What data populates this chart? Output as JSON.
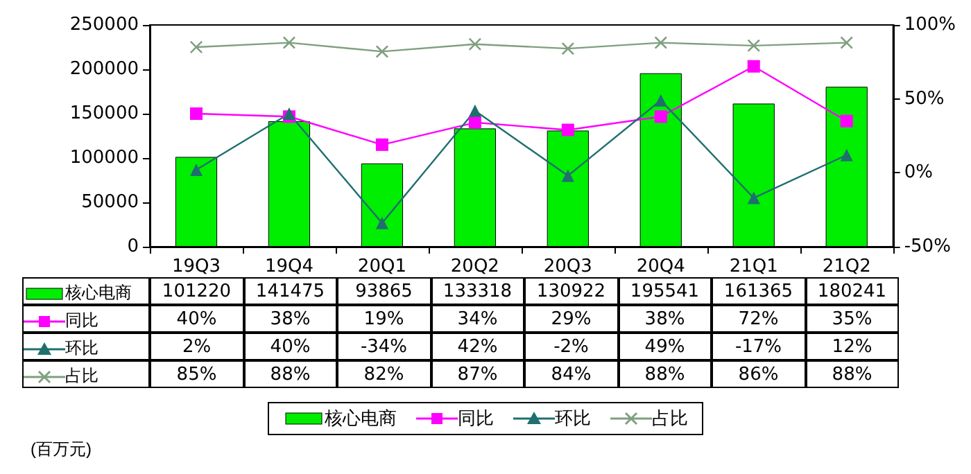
{
  "chart_data": {
    "type": "bar",
    "categories": [
      "19Q3",
      "19Q4",
      "20Q1",
      "20Q2",
      "20Q3",
      "20Q4",
      "21Q1",
      "21Q2"
    ],
    "series": [
      {
        "name": "核心电商",
        "color": "#00ee00",
        "values": [
          101220,
          141475,
          93865,
          133318,
          130922,
          195541,
          161365,
          180241
        ],
        "value_labels": [
          "101220",
          "141475",
          "93865",
          "133318",
          "130922",
          "195541",
          "161365",
          "180241"
        ]
      },
      {
        "name": "同比",
        "type": "line",
        "axis": "y2",
        "color": "#ff00ff",
        "marker": "square",
        "values": [
          40,
          38,
          19,
          34,
          29,
          38,
          72,
          35
        ],
        "value_labels": [
          "40%",
          "38%",
          "19%",
          "34%",
          "29%",
          "38%",
          "72%",
          "35%"
        ]
      },
      {
        "name": "环比",
        "type": "line",
        "axis": "y2",
        "color": "#1f6f6f",
        "marker": "triangle",
        "values": [
          2,
          40,
          -34,
          42,
          -2,
          49,
          -17,
          12
        ],
        "value_labels": [
          "2%",
          "40%",
          "-34%",
          "42%",
          "-2%",
          "49%",
          "-17%",
          "12%"
        ]
      },
      {
        "name": "占比",
        "type": "line",
        "axis": "y2",
        "color": "#7f9f7f",
        "marker": "cross",
        "values": [
          85,
          88,
          82,
          87,
          84,
          88,
          86,
          88
        ],
        "value_labels": [
          "85%",
          "88%",
          "82%",
          "87%",
          "84%",
          "88%",
          "86%",
          "88%"
        ]
      }
    ],
    "ylim": [
      0,
      250000
    ],
    "yticks": [
      0,
      50000,
      100000,
      150000,
      200000,
      250000
    ],
    "y2lim": [
      -50,
      100
    ],
    "y2ticks": [
      {
        "value": -50,
        "label": "-50%"
      },
      {
        "value": 0,
        "label": "0%"
      },
      {
        "value": 50,
        "label": "50%"
      },
      {
        "value": 100,
        "label": "100%"
      }
    ],
    "grid": false,
    "legend": "bottom",
    "line_style": "solid",
    "annotations": [
      "(百万元)"
    ]
  }
}
